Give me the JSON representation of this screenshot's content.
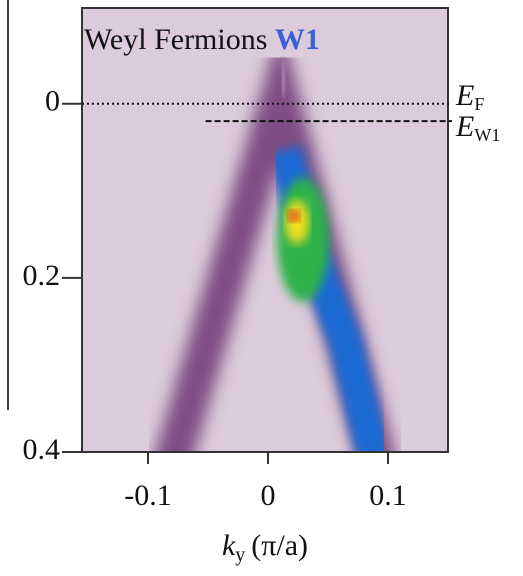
{
  "chart_data": {
    "type": "heatmap",
    "title": {
      "text": "Weyl Fermions",
      "highlight": "W1",
      "highlight_color": "#3a5fd8"
    },
    "x_label": {
      "symbol": "k",
      "subscript": "y",
      "unit": "(π/a)"
    },
    "xlim": [
      -0.155,
      0.15
    ],
    "xticks": [
      -0.1,
      0,
      0.1
    ],
    "ylim": [
      -0.11,
      0.4
    ],
    "yticks": [
      0,
      0.2,
      0.4
    ],
    "y_inverted": true,
    "reference_lines": [
      {
        "y": 0,
        "style": "dotted",
        "label": {
          "symbol": "E",
          "subscript": "F"
        }
      },
      {
        "y": 0.02,
        "xmin": -0.052,
        "style": "dashed",
        "label": {
          "symbol": "E",
          "subscript": "W1"
        }
      }
    ]
  }
}
